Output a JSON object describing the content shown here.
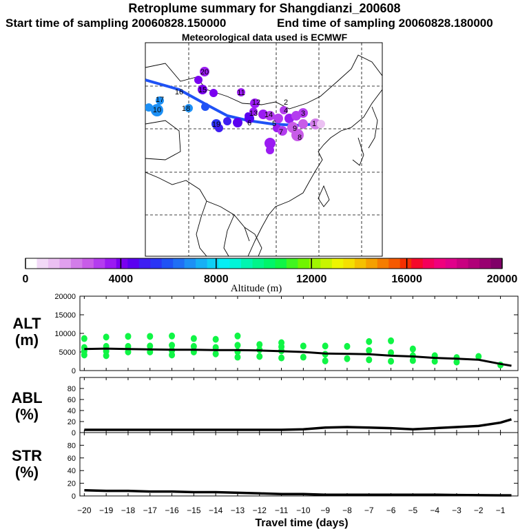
{
  "header": {
    "title": "Retroplume summary for Shangdianzi_200608",
    "start_time": "Start time of sampling 20060828.150000",
    "end_time": "End time of sampling 20060828.180000",
    "met_data": "Meteorological data used is ECMWF"
  },
  "colorbar": {
    "label": "Altitude (m)",
    "ticks": [
      "0",
      "4000",
      "8000",
      "12000",
      "16000",
      "20000"
    ],
    "colors": [
      "#ffffff",
      "#f2d9f7",
      "#ebc0f2",
      "#e0a0ee",
      "#d27de9",
      "#c85ce8",
      "#b43cef",
      "#9b1bf2",
      "#7a00f0",
      "#5a00f0",
      "#3f1ef2",
      "#2a35f5",
      "#1f52f5",
      "#1f6ff5",
      "#1d90f5",
      "#17b0f5",
      "#10cff5",
      "#05eef5",
      "#00f5d8",
      "#00f5b0",
      "#00f58a",
      "#00f56a",
      "#10f545",
      "#40f520",
      "#70f500",
      "#a0f500",
      "#c8f500",
      "#eef500",
      "#f5e000",
      "#f5c000",
      "#f5a000",
      "#f57d00",
      "#f55a00",
      "#f53000",
      "#f50a2a",
      "#f5005a",
      "#f0007d",
      "#e0008a",
      "#c80080",
      "#b00078",
      "#980070",
      "#800068"
    ]
  },
  "panels": [
    {
      "label": "ALT",
      "unit": "(m)"
    },
    {
      "label": "ABL",
      "unit": "(%)"
    },
    {
      "label": "STR",
      "unit": "(%)"
    }
  ],
  "map_labels": [
    {
      "text": "1"
    },
    {
      "text": "2"
    },
    {
      "text": "3"
    },
    {
      "text": "4"
    },
    {
      "text": "5"
    },
    {
      "text": "6"
    },
    {
      "text": "7"
    },
    {
      "text": "8"
    },
    {
      "text": "9"
    },
    {
      "text": "10"
    },
    {
      "text": "11"
    },
    {
      "text": "12"
    },
    {
      "text": "13"
    },
    {
      "text": "14"
    },
    {
      "text": "15"
    },
    {
      "text": "16"
    },
    {
      "text": "17"
    },
    {
      "text": "18"
    },
    {
      "text": "19"
    },
    {
      "text": "20"
    }
  ],
  "chart_data": [
    {
      "type": "scatter",
      "title": "ALT",
      "ylabel": "(m)",
      "xlabel": "Travel time (days)",
      "x_ticks": [
        "-20",
        "-19",
        "-18",
        "-17",
        "-16",
        "-15",
        "-14",
        "-13",
        "-12",
        "-11",
        "-10",
        "-9",
        "-8",
        "-7",
        "-6",
        "-5",
        "-4",
        "-3",
        "-2",
        "-1"
      ],
      "xlim": [
        -20.2,
        -0.2
      ],
      "ylim": [
        0,
        20000
      ],
      "y_ticks": [
        "0",
        "5000",
        "10000",
        "15000",
        "20000"
      ],
      "series": [
        {
          "name": "mean altitude",
          "x": [
            -20,
            -19,
            -18,
            -17,
            -16,
            -15,
            -14,
            -13,
            -12,
            -11,
            -10,
            -9,
            -8,
            -7,
            -6,
            -5,
            -4,
            -3,
            -2,
            -1,
            -0.5
          ],
          "y": [
            5800,
            5900,
            5800,
            5700,
            5600,
            5600,
            5500,
            5500,
            5400,
            5200,
            5000,
            4600,
            4500,
            4400,
            4000,
            3800,
            3400,
            3200,
            2900,
            1800,
            1300
          ]
        },
        {
          "name": "particle clusters",
          "x": [
            -20,
            -20,
            -20,
            -20,
            -19,
            -19,
            -19,
            -19,
            -18,
            -18,
            -18,
            -17,
            -17,
            -17,
            -16,
            -16,
            -16,
            -16,
            -15,
            -15,
            -15,
            -14,
            -14,
            -14,
            -13,
            -13,
            -13,
            -13,
            -12,
            -12,
            -12,
            -11,
            -11,
            -11,
            -11,
            -10,
            -10,
            -9,
            -9,
            -9,
            -8,
            -8,
            -7,
            -7,
            -7,
            -6,
            -6,
            -6,
            -5,
            -5,
            -5,
            -4,
            -4,
            -3,
            -3,
            -2,
            -1
          ],
          "y": [
            8600,
            6200,
            5200,
            4200,
            9000,
            6500,
            5200,
            4000,
            9200,
            6500,
            5000,
            9200,
            6600,
            5000,
            9300,
            6800,
            5400,
            4200,
            8600,
            6500,
            5000,
            8400,
            6200,
            4500,
            9300,
            6800,
            5100,
            3600,
            7000,
            5600,
            3800,
            7500,
            6400,
            5300,
            3400,
            6600,
            3600,
            6600,
            4400,
            2600,
            6500,
            3200,
            7800,
            5400,
            2900,
            8000,
            4800,
            2500,
            5800,
            4000,
            2700,
            4000,
            2500,
            3500,
            2300,
            3800,
            1500
          ]
        }
      ]
    },
    {
      "type": "line",
      "title": "ABL",
      "ylabel": "(%)",
      "xlim": [
        -20.2,
        -0.2
      ],
      "ylim": [
        0,
        100
      ],
      "y_ticks": [
        "0",
        "20",
        "40",
        "60",
        "80"
      ],
      "series": [
        {
          "name": "ABL",
          "x": [
            -20,
            -18,
            -16,
            -14,
            -12,
            -11,
            -10,
            -9,
            -8,
            -7,
            -6,
            -5,
            -4,
            -3,
            -2,
            -1,
            -0.5
          ],
          "y": [
            5,
            5,
            5,
            5,
            5,
            5,
            6,
            9,
            10,
            9,
            8,
            6,
            8,
            10,
            12,
            18,
            24
          ]
        }
      ]
    },
    {
      "type": "line",
      "title": "STR",
      "ylabel": "(%)",
      "xlim": [
        -20.2,
        -0.2
      ],
      "ylim": [
        0,
        100
      ],
      "y_ticks": [
        "0",
        "20",
        "40",
        "60",
        "80"
      ],
      "series": [
        {
          "name": "STR",
          "x": [
            -20,
            -19,
            -18,
            -17,
            -16,
            -15,
            -14,
            -13,
            -12,
            -11,
            -10,
            -9,
            -8,
            -7,
            -6,
            -5,
            -4,
            -3,
            -2,
            -1,
            -0.5
          ],
          "y": [
            9,
            8,
            8,
            7,
            7,
            6,
            6,
            5,
            4,
            3,
            3,
            2,
            2,
            2,
            2,
            2,
            2,
            1.5,
            1.2,
            1,
            1
          ]
        }
      ]
    }
  ]
}
